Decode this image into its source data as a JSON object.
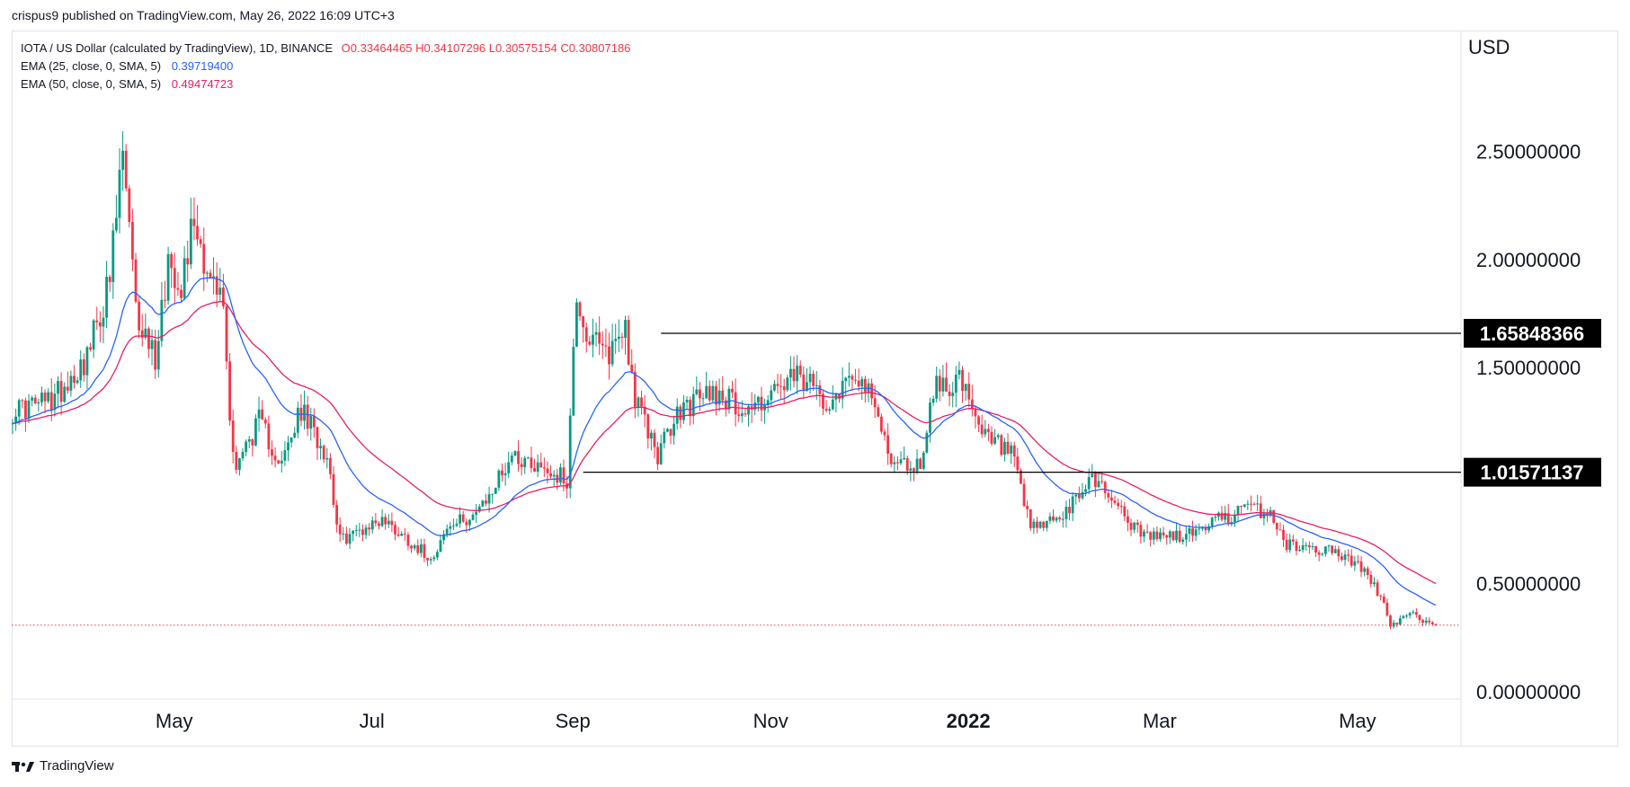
{
  "header": {
    "publisher": "crispus9 published on TradingView.com, May 26, 2022 16:09 UTC+3"
  },
  "legend": {
    "symbol": "IOTA / US Dollar (calculated by TradingView), 1D, BINANCE",
    "open": "O0.33464465",
    "high": "H0.34107296",
    "low": "L0.30575154",
    "close": "C0.30807186",
    "ema25_label": "EMA (25, close, 0, SMA, 5)",
    "ema25_value": "0.39719400",
    "ema50_label": "EMA (50, close, 0, SMA, 5)",
    "ema50_value": "0.49474723"
  },
  "price_axis": {
    "currency": "USD",
    "ticks": [
      "2.50000000",
      "2.00000000",
      "1.50000000",
      "0.50000000",
      "0.00000000"
    ]
  },
  "time_axis": {
    "ticks": [
      "May",
      "Jul",
      "Sep",
      "Nov",
      "2022",
      "Mar",
      "May"
    ]
  },
  "price_labels": [
    "1.65848366",
    "1.01571137"
  ],
  "brand": {
    "name": "TradingView"
  },
  "colors": {
    "up": "#089981",
    "down": "#f23645",
    "ema25": "#2962ff",
    "ema50": "#e91e63",
    "hline": "#000000",
    "last_price_line": "#f23645",
    "label_bg": "#000000"
  },
  "chart_data": {
    "type": "candlestick",
    "symbol": "IOTA / US Dollar",
    "interval": "1D",
    "ylim": [
      0,
      2.8
    ],
    "x_range": [
      "2021-03-13",
      "2022-05-26"
    ],
    "horizontal_lines": [
      {
        "value": 1.65848366,
        "from": "2021-09-29",
        "to": "2022-05-26"
      },
      {
        "value": 1.01571137,
        "from": "2021-09-05",
        "to": "2022-05-26"
      }
    ],
    "last_close": 0.30807186,
    "anchors": [
      [
        "2021-03-13",
        1.3
      ],
      [
        "2021-03-25",
        1.35
      ],
      [
        "2021-04-05",
        1.55
      ],
      [
        "2021-04-12",
        1.9
      ],
      [
        "2021-04-16",
        2.5
      ],
      [
        "2021-04-20",
        1.75
      ],
      [
        "2021-04-26",
        1.55
      ],
      [
        "2021-04-30",
        2.0
      ],
      [
        "2021-05-04",
        1.9
      ],
      [
        "2021-05-08",
        2.2
      ],
      [
        "2021-05-13",
        1.9
      ],
      [
        "2021-05-17",
        1.8
      ],
      [
        "2021-05-19",
        1.25
      ],
      [
        "2021-05-21",
        1.05
      ],
      [
        "2021-05-28",
        1.25
      ],
      [
        "2021-06-04",
        1.05
      ],
      [
        "2021-06-10",
        1.3
      ],
      [
        "2021-06-18",
        1.1
      ],
      [
        "2021-06-22",
        0.7
      ],
      [
        "2021-07-05",
        0.8
      ],
      [
        "2021-07-20",
        0.62
      ],
      [
        "2021-07-25",
        0.75
      ],
      [
        "2021-08-05",
        0.85
      ],
      [
        "2021-08-14",
        1.1
      ],
      [
        "2021-08-22",
        1.05
      ],
      [
        "2021-08-31",
        0.98
      ],
      [
        "2021-09-03",
        1.85
      ],
      [
        "2021-09-06",
        1.65
      ],
      [
        "2021-09-12",
        1.55
      ],
      [
        "2021-09-18",
        1.7
      ],
      [
        "2021-09-21",
        1.35
      ],
      [
        "2021-09-28",
        1.1
      ],
      [
        "2021-10-05",
        1.3
      ],
      [
        "2021-10-15",
        1.4
      ],
      [
        "2021-10-25",
        1.3
      ],
      [
        "2021-11-10",
        1.45
      ],
      [
        "2021-11-20",
        1.35
      ],
      [
        "2021-11-28",
        1.5
      ],
      [
        "2021-12-04",
        1.3
      ],
      [
        "2021-12-10",
        1.05
      ],
      [
        "2021-12-18",
        1.05
      ],
      [
        "2021-12-22",
        1.4
      ],
      [
        "2021-12-30",
        1.45
      ],
      [
        "2022-01-05",
        1.2
      ],
      [
        "2022-01-15",
        1.1
      ],
      [
        "2022-01-21",
        0.75
      ],
      [
        "2022-02-01",
        0.82
      ],
      [
        "2022-02-09",
        1.0
      ],
      [
        "2022-02-15",
        0.9
      ],
      [
        "2022-02-24",
        0.72
      ],
      [
        "2022-03-10",
        0.72
      ],
      [
        "2022-03-20",
        0.8
      ],
      [
        "2022-03-30",
        0.85
      ],
      [
        "2022-04-05",
        0.82
      ],
      [
        "2022-04-10",
        0.68
      ],
      [
        "2022-04-25",
        0.65
      ],
      [
        "2022-05-05",
        0.55
      ],
      [
        "2022-05-10",
        0.4
      ],
      [
        "2022-05-12",
        0.3
      ],
      [
        "2022-05-18",
        0.36
      ],
      [
        "2022-05-26",
        0.308
      ]
    ]
  }
}
